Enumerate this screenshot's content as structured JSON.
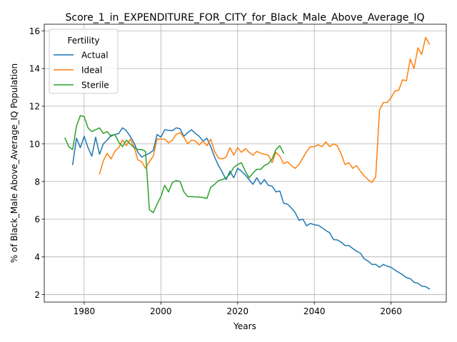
{
  "chart_data": {
    "type": "line",
    "title": "Score_1_in_EXPENDITURE_FOR_CITY_for_Black_Male_Above_Average_IQ",
    "xlabel": "Years",
    "ylabel": "% of Black_Male Above_Average_IQ Population",
    "xlim": [
      1969.6,
      2074.4
    ],
    "ylim": [
      1.6,
      16.35
    ],
    "x_ticks": [
      1980,
      2000,
      2020,
      2040,
      2060
    ],
    "y_ticks": [
      2,
      4,
      6,
      8,
      10,
      12,
      14,
      16
    ],
    "grid": true,
    "legend": {
      "title": "Fertility",
      "position": "upper-left"
    },
    "series": [
      {
        "name": "Actual",
        "color": "#1f77b4",
        "x": [
          1977,
          1978,
          1979,
          1980,
          1981,
          1982,
          1983,
          1984,
          1985,
          1986,
          1987,
          1988,
          1989,
          1990,
          1991,
          1992,
          1993,
          1994,
          1995,
          1996,
          1997,
          1998,
          1999,
          2000,
          2001,
          2002,
          2003,
          2004,
          2005,
          2006,
          2007,
          2008,
          2009,
          2010,
          2011,
          2012,
          2013,
          2014,
          2015,
          2016,
          2017,
          2018,
          2019,
          2020,
          2021,
          2022,
          2023,
          2024,
          2025,
          2026,
          2027,
          2028,
          2029,
          2030,
          2031,
          2032,
          2033,
          2034,
          2035,
          2036,
          2037,
          2038,
          2039,
          2040,
          2041,
          2042,
          2043,
          2044,
          2045,
          2046,
          2047,
          2048,
          2049,
          2050,
          2051,
          2052,
          2053,
          2054,
          2055,
          2056,
          2057,
          2058,
          2059,
          2060,
          2061,
          2062,
          2063,
          2064,
          2065,
          2066,
          2067,
          2068,
          2069,
          2070
        ],
        "values": [
          8.9,
          10.3,
          9.8,
          10.4,
          9.8,
          9.35,
          10.35,
          9.45,
          10.0,
          10.2,
          10.45,
          10.5,
          10.55,
          10.85,
          10.7,
          10.4,
          10.05,
          9.55,
          9.3,
          9.4,
          9.5,
          9.65,
          10.5,
          10.35,
          10.75,
          10.72,
          10.7,
          10.85,
          10.8,
          10.4,
          10.6,
          10.75,
          10.55,
          10.4,
          10.15,
          10.3,
          9.85,
          9.3,
          8.85,
          8.5,
          8.1,
          8.55,
          8.2,
          8.7,
          8.55,
          8.35,
          8.1,
          7.85,
          8.2,
          7.85,
          8.1,
          7.8,
          7.75,
          7.45,
          7.5,
          6.85,
          6.8,
          6.6,
          6.35,
          5.95,
          6.0,
          5.65,
          5.78,
          5.7,
          5.68,
          5.55,
          5.4,
          5.28,
          4.92,
          4.9,
          4.78,
          4.6,
          4.6,
          4.45,
          4.3,
          4.2,
          3.9,
          3.78,
          3.6,
          3.6,
          3.45,
          3.6,
          3.5,
          3.45,
          3.3,
          3.18,
          3.05,
          2.9,
          2.85,
          2.65,
          2.6,
          2.45,
          2.42,
          2.3
        ]
      },
      {
        "name": "Ideal",
        "color": "#ff7f0e",
        "x": [
          1984,
          1985,
          1986,
          1987,
          1988,
          1989,
          1990,
          1991,
          1992,
          1993,
          1994,
          1995,
          1996,
          1997,
          1998,
          1999,
          2000,
          2001,
          2002,
          2003,
          2004,
          2005,
          2006,
          2007,
          2008,
          2009,
          2010,
          2011,
          2012,
          2013,
          2014,
          2015,
          2016,
          2017,
          2018,
          2019,
          2020,
          2021,
          2022,
          2023,
          2024,
          2025,
          2026,
          2027,
          2028,
          2029,
          2030,
          2031,
          2032,
          2033,
          2034,
          2035,
          2036,
          2037,
          2038,
          2039,
          2040,
          2041,
          2042,
          2043,
          2044,
          2045,
          2046,
          2047,
          2048,
          2049,
          2050,
          2051,
          2052,
          2053,
          2054,
          2055,
          2056,
          2057,
          2058,
          2059,
          2060,
          2061,
          2062,
          2063,
          2064,
          2065,
          2066,
          2067,
          2068,
          2069,
          2070
        ],
        "values": [
          8.4,
          9.1,
          9.5,
          9.2,
          9.6,
          9.8,
          10.2,
          9.9,
          10.25,
          9.85,
          9.15,
          9.05,
          8.7,
          9.05,
          9.35,
          10.25,
          10.25,
          10.25,
          10.05,
          10.2,
          10.5,
          10.6,
          10.35,
          10.0,
          10.2,
          10.15,
          9.95,
          10.15,
          9.9,
          10.25,
          9.6,
          9.25,
          9.2,
          9.3,
          9.8,
          9.4,
          9.8,
          9.55,
          9.75,
          9.55,
          9.4,
          9.6,
          9.5,
          9.45,
          9.4,
          9.0,
          9.55,
          9.35,
          8.95,
          9.05,
          8.85,
          8.7,
          8.9,
          9.25,
          9.6,
          9.85,
          9.85,
          9.95,
          9.85,
          10.1,
          9.85,
          10.0,
          9.9,
          9.45,
          8.9,
          9.0,
          8.7,
          8.85,
          8.55,
          8.3,
          8.1,
          7.95,
          8.25,
          11.8,
          12.2,
          12.2,
          12.45,
          12.8,
          12.85,
          13.4,
          13.35,
          14.5,
          14.0,
          15.1,
          14.75,
          15.65,
          15.3
        ]
      },
      {
        "name": "Sterile",
        "color": "#2ca02c",
        "x": [
          1975,
          1976,
          1977,
          1978,
          1979,
          1980,
          1981,
          1982,
          1983,
          1984,
          1985,
          1986,
          1987,
          1988,
          1989,
          1990,
          1991,
          1992,
          1993,
          1994,
          1995,
          1996,
          1997,
          1998,
          1999,
          2000,
          2001,
          2002,
          2003,
          2004,
          2005,
          2006,
          2007,
          2008,
          2009,
          2010,
          2011,
          2012,
          2013,
          2014,
          2015,
          2016,
          2017,
          2018,
          2019,
          2020,
          2021,
          2022,
          2023,
          2024,
          2025,
          2026,
          2027,
          2028,
          2029,
          2030,
          2031,
          2032
        ],
        "values": [
          10.3,
          9.85,
          9.7,
          10.95,
          11.5,
          11.45,
          10.85,
          10.65,
          10.75,
          10.85,
          10.55,
          10.65,
          10.4,
          10.5,
          10.1,
          9.85,
          10.2,
          10.0,
          9.8,
          9.7,
          9.7,
          9.6,
          6.5,
          6.35,
          6.8,
          7.2,
          7.8,
          7.45,
          7.95,
          8.05,
          8.0,
          7.45,
          7.2,
          7.2,
          7.18,
          7.18,
          7.15,
          7.1,
          7.7,
          7.85,
          8.05,
          8.1,
          8.2,
          8.4,
          8.75,
          8.9,
          9.0,
          8.55,
          8.2,
          8.45,
          8.65,
          8.65,
          8.85,
          8.95,
          9.2,
          9.7,
          9.9,
          9.5
        ]
      }
    ]
  }
}
